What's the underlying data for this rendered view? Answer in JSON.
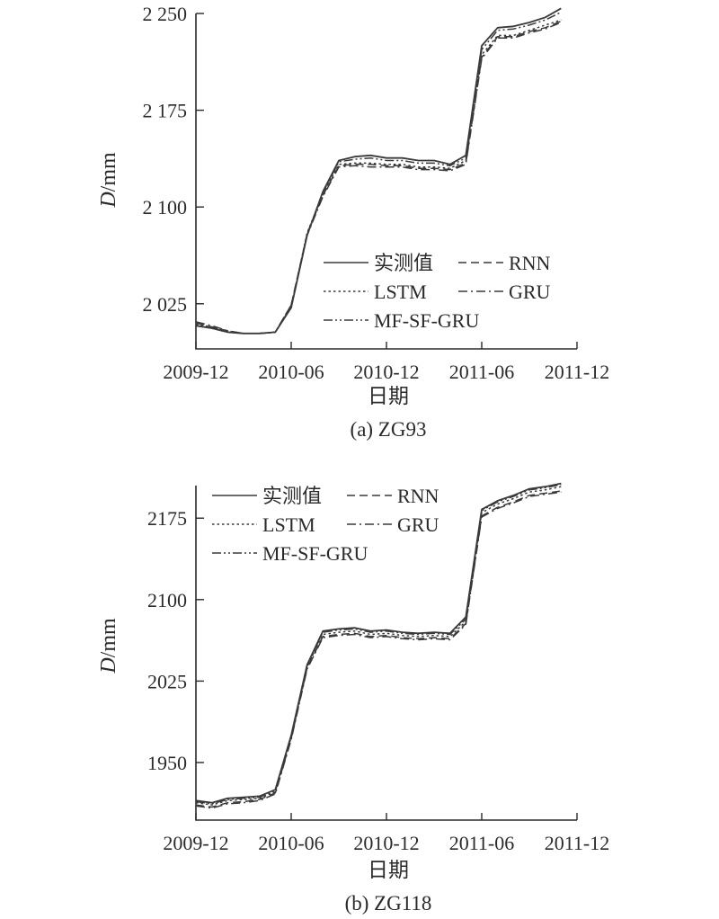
{
  "chart_data": [
    {
      "type": "line",
      "caption": "(a) ZG93",
      "xlabel": "日期",
      "ylabel": "D/mm",
      "ylabel_italic": "D",
      "ylabel_unit": "/mm",
      "ylim": [
        1990,
        2250
      ],
      "yticks": [
        2025,
        2100,
        2175,
        2250
      ],
      "ytick_labels": [
        "2 025",
        "2 100",
        "2 175",
        "2 250"
      ],
      "xlim": [
        "2009-12",
        "2011-12"
      ],
      "xticks": [
        "2009-12",
        "2010-06",
        "2010-12",
        "2011-06",
        "2011-12"
      ],
      "legend_position": "lower-right",
      "series": [
        {
          "name": "实测值",
          "dash": "solid",
          "x": [
            "2009-12",
            "2010-01",
            "2010-02",
            "2010-03",
            "2010-04",
            "2010-05",
            "2010-06",
            "2010-07",
            "2010-08",
            "2010-09",
            "2010-10",
            "2010-11",
            "2010-12",
            "2011-01",
            "2011-02",
            "2011-03",
            "2011-04",
            "2011-05",
            "2011-06",
            "2011-07",
            "2011-08",
            "2011-09",
            "2011-10",
            "2011-11"
          ],
          "values": [
            2008,
            2006,
            2003,
            2002,
            2002,
            2003,
            2022,
            2078,
            2112,
            2136,
            2139,
            2140,
            2138,
            2138,
            2136,
            2136,
            2133,
            2140,
            2225,
            2239,
            2240,
            2243,
            2247,
            2254
          ]
        },
        {
          "name": "RNN",
          "dash": "dashed",
          "x": [
            "2009-12",
            "2010-01",
            "2010-02",
            "2010-03",
            "2010-04",
            "2010-05",
            "2010-06",
            "2010-07",
            "2010-08",
            "2010-09",
            "2010-10",
            "2010-11",
            "2010-12",
            "2011-01",
            "2011-02",
            "2011-03",
            "2011-04",
            "2011-05",
            "2011-06",
            "2011-07",
            "2011-08",
            "2011-09",
            "2011-10",
            "2011-11"
          ],
          "values": [
            2010,
            2007,
            2004,
            2002,
            2002,
            2003,
            2024,
            2079,
            2109,
            2132,
            2133,
            2133,
            2132,
            2132,
            2130,
            2130,
            2129,
            2134,
            2216,
            2232,
            2232,
            2236,
            2239,
            2244
          ]
        },
        {
          "name": "LSTM",
          "dash": "dotted",
          "x": [
            "2009-12",
            "2010-01",
            "2010-02",
            "2010-03",
            "2010-04",
            "2010-05",
            "2010-06",
            "2010-07",
            "2010-08",
            "2010-09",
            "2010-10",
            "2010-11",
            "2010-12",
            "2011-01",
            "2011-02",
            "2011-03",
            "2011-04",
            "2011-05",
            "2011-06",
            "2011-07",
            "2011-08",
            "2011-09",
            "2011-10",
            "2011-11"
          ],
          "values": [
            2009,
            2007,
            2003,
            2002,
            2002,
            2003,
            2023,
            2080,
            2110,
            2133,
            2134,
            2134,
            2133,
            2133,
            2131,
            2131,
            2130,
            2136,
            2218,
            2233,
            2233,
            2237,
            2241,
            2245
          ]
        },
        {
          "name": "GRU",
          "dash": "dashdot",
          "x": [
            "2009-12",
            "2010-01",
            "2010-02",
            "2010-03",
            "2010-04",
            "2010-05",
            "2010-06",
            "2010-07",
            "2010-08",
            "2010-09",
            "2010-10",
            "2010-11",
            "2010-12",
            "2011-01",
            "2011-02",
            "2011-03",
            "2011-04",
            "2011-05",
            "2011-06",
            "2011-07",
            "2011-08",
            "2011-09",
            "2011-10",
            "2011-11"
          ],
          "values": [
            2011,
            2008,
            2004,
            2002,
            2002,
            2003,
            2024,
            2078,
            2108,
            2131,
            2132,
            2131,
            2131,
            2131,
            2129,
            2129,
            2128,
            2133,
            2215,
            2231,
            2231,
            2235,
            2238,
            2243
          ]
        },
        {
          "name": "MF-SF-GRU",
          "dash": "dashdotdot",
          "x": [
            "2009-12",
            "2010-01",
            "2010-02",
            "2010-03",
            "2010-04",
            "2010-05",
            "2010-06",
            "2010-07",
            "2010-08",
            "2010-09",
            "2010-10",
            "2010-11",
            "2010-12",
            "2011-01",
            "2011-02",
            "2011-03",
            "2011-04",
            "2011-05",
            "2011-06",
            "2011-07",
            "2011-08",
            "2011-09",
            "2011-10",
            "2011-11"
          ],
          "values": [
            2008,
            2006,
            2003,
            2002,
            2002,
            2003,
            2022,
            2079,
            2111,
            2135,
            2137,
            2138,
            2136,
            2136,
            2134,
            2134,
            2132,
            2138,
            2222,
            2237,
            2238,
            2241,
            2245,
            2251
          ]
        }
      ]
    },
    {
      "type": "line",
      "caption": "(b) ZG118",
      "xlabel": "日期",
      "ylabel": "D/mm",
      "ylabel_italic": "D",
      "ylabel_unit": "/mm",
      "ylim": [
        1897,
        2205
      ],
      "yticks": [
        1950,
        2025,
        2100,
        2175
      ],
      "ytick_labels": [
        "1950",
        "2025",
        "2100",
        "2175"
      ],
      "xlim": [
        "2009-12",
        "2011-12"
      ],
      "xticks": [
        "2009-12",
        "2010-06",
        "2010-12",
        "2011-06",
        "2011-12"
      ],
      "legend_position": "top-left",
      "series": [
        {
          "name": "实测值",
          "dash": "solid",
          "x": [
            "2009-12",
            "2010-01",
            "2010-02",
            "2010-03",
            "2010-04",
            "2010-05",
            "2010-06",
            "2010-07",
            "2010-08",
            "2010-09",
            "2010-10",
            "2010-11",
            "2010-12",
            "2011-01",
            "2011-02",
            "2011-03",
            "2011-04",
            "2011-05",
            "2011-06",
            "2011-07",
            "2011-08",
            "2011-09",
            "2011-10",
            "2011-11"
          ],
          "values": [
            1915,
            1913,
            1917,
            1918,
            1919,
            1925,
            1975,
            2040,
            2071,
            2073,
            2074,
            2071,
            2072,
            2070,
            2069,
            2070,
            2069,
            2084,
            2183,
            2191,
            2196,
            2202,
            2204,
            2207
          ]
        },
        {
          "name": "RNN",
          "dash": "dashed",
          "x": [
            "2009-12",
            "2010-01",
            "2010-02",
            "2010-03",
            "2010-04",
            "2010-05",
            "2010-06",
            "2010-07",
            "2010-08",
            "2010-09",
            "2010-10",
            "2010-11",
            "2010-12",
            "2011-01",
            "2011-02",
            "2011-03",
            "2011-04",
            "2011-05",
            "2011-06",
            "2011-07",
            "2011-08",
            "2011-09",
            "2011-10",
            "2011-11"
          ],
          "values": [
            1911,
            1909,
            1913,
            1914,
            1916,
            1922,
            1972,
            2037,
            2066,
            2068,
            2069,
            2066,
            2067,
            2065,
            2064,
            2065,
            2064,
            2078,
            2177,
            2185,
            2190,
            2196,
            2198,
            2200
          ]
        },
        {
          "name": "LSTM",
          "dash": "dotted",
          "x": [
            "2009-12",
            "2010-01",
            "2010-02",
            "2010-03",
            "2010-04",
            "2010-05",
            "2010-06",
            "2010-07",
            "2010-08",
            "2010-09",
            "2010-10",
            "2010-11",
            "2010-12",
            "2011-01",
            "2011-02",
            "2011-03",
            "2011-04",
            "2011-05",
            "2011-06",
            "2011-07",
            "2011-08",
            "2011-09",
            "2011-10",
            "2011-11"
          ],
          "values": [
            1913,
            1911,
            1915,
            1916,
            1917,
            1923,
            1973,
            2038,
            2068,
            2070,
            2071,
            2068,
            2069,
            2067,
            2066,
            2067,
            2066,
            2080,
            2180,
            2188,
            2193,
            2199,
            2201,
            2204
          ]
        },
        {
          "name": "GRU",
          "dash": "dashdot",
          "x": [
            "2009-12",
            "2010-01",
            "2010-02",
            "2010-03",
            "2010-04",
            "2010-05",
            "2010-06",
            "2010-07",
            "2010-08",
            "2010-09",
            "2010-10",
            "2010-11",
            "2010-12",
            "2011-01",
            "2011-02",
            "2011-03",
            "2011-04",
            "2011-05",
            "2011-06",
            "2011-07",
            "2011-08",
            "2011-09",
            "2011-10",
            "2011-11"
          ],
          "values": [
            1910,
            1908,
            1912,
            1913,
            1915,
            1921,
            1971,
            2036,
            2065,
            2067,
            2068,
            2065,
            2066,
            2064,
            2063,
            2064,
            2063,
            2077,
            2176,
            2184,
            2189,
            2195,
            2197,
            2199
          ]
        },
        {
          "name": "MF-SF-GRU",
          "dash": "dashdotdot",
          "x": [
            "2009-12",
            "2010-01",
            "2010-02",
            "2010-03",
            "2010-04",
            "2010-05",
            "2010-06",
            "2010-07",
            "2010-08",
            "2010-09",
            "2010-10",
            "2010-11",
            "2010-12",
            "2011-01",
            "2011-02",
            "2011-03",
            "2011-04",
            "2011-05",
            "2011-06",
            "2011-07",
            "2011-08",
            "2011-09",
            "2011-10",
            "2011-11"
          ],
          "values": [
            1914,
            1912,
            1916,
            1917,
            1918,
            1924,
            1974,
            2039,
            2070,
            2072,
            2073,
            2070,
            2071,
            2069,
            2068,
            2069,
            2068,
            2082,
            2182,
            2190,
            2195,
            2201,
            2203,
            2206
          ]
        }
      ]
    }
  ],
  "colors": {
    "line": "#3a3a3a",
    "axis": "#2a2a2a"
  }
}
